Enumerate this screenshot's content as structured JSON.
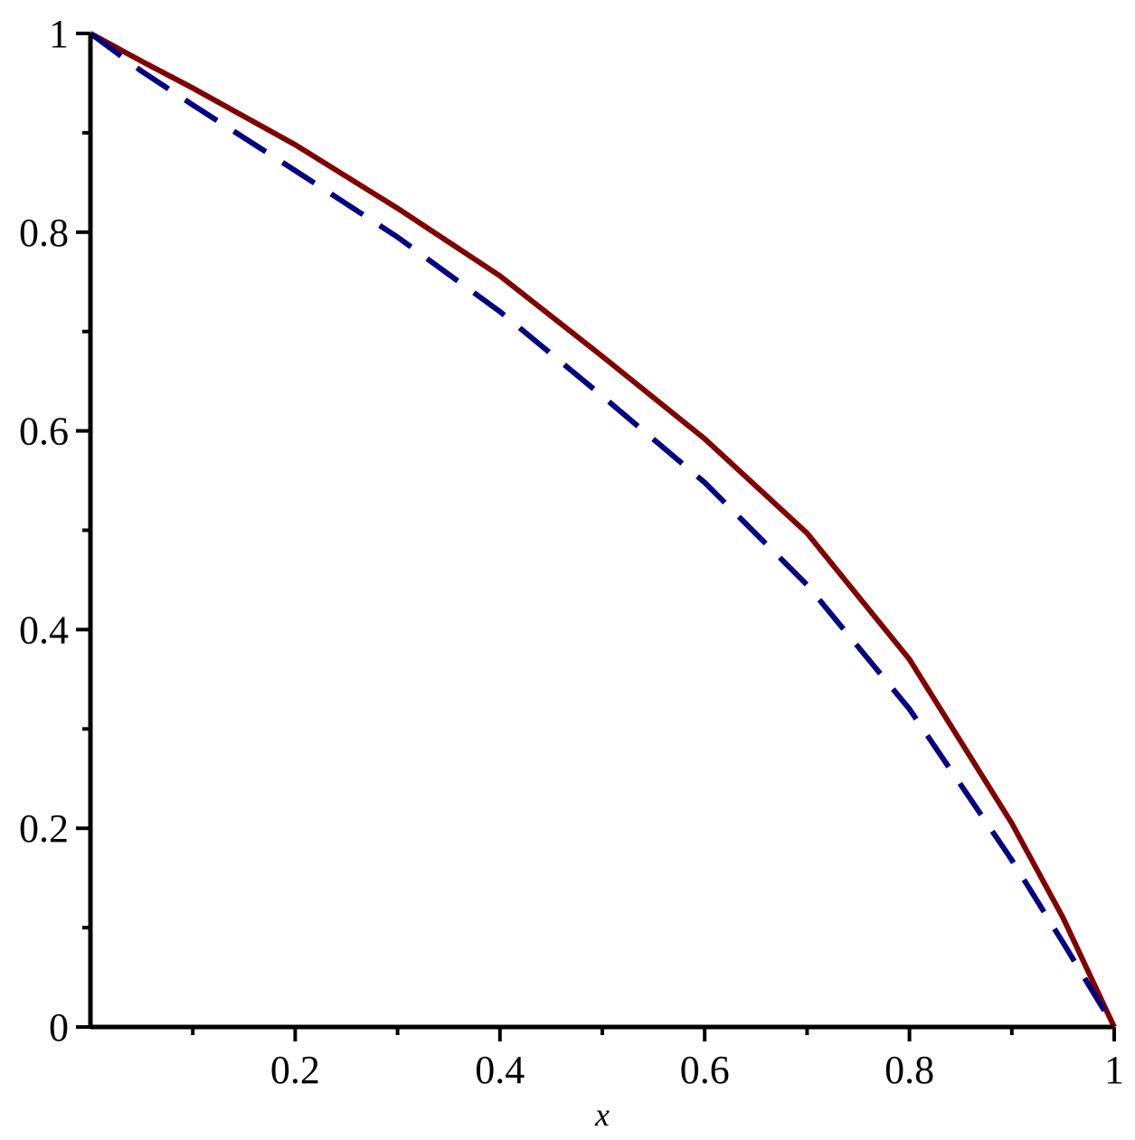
{
  "chart_data": {
    "type": "line",
    "xlabel": "x",
    "x": [
      0,
      0.05,
      0.1,
      0.2,
      0.3,
      0.4,
      0.5,
      0.6,
      0.7,
      0.8,
      0.9,
      0.95,
      1
    ],
    "series": [
      {
        "name": "solid",
        "color": "#800000",
        "dash": false,
        "values": [
          1,
          0.972,
          0.945,
          0.888,
          0.824,
          0.756,
          0.675,
          0.592,
          0.497,
          0.37,
          0.205,
          0.11,
          0
        ]
      },
      {
        "name": "dashed",
        "color": "#000080",
        "dash": true,
        "values": [
          1,
          0.962,
          0.928,
          0.862,
          0.795,
          0.72,
          0.635,
          0.548,
          0.445,
          0.32,
          0.168,
          0.085,
          0
        ]
      }
    ],
    "xlim": [
      0,
      1
    ],
    "ylim": [
      0,
      1
    ],
    "xticks": [
      0.2,
      0.4,
      0.6,
      0.8,
      1
    ],
    "yticks": [
      0,
      0.2,
      0.4,
      0.6,
      0.8,
      1
    ],
    "xminorticks": [
      0.1,
      0.3,
      0.5,
      0.7,
      0.9
    ],
    "yminorticks": [
      0.1,
      0.3,
      0.5,
      0.7,
      0.9
    ]
  }
}
